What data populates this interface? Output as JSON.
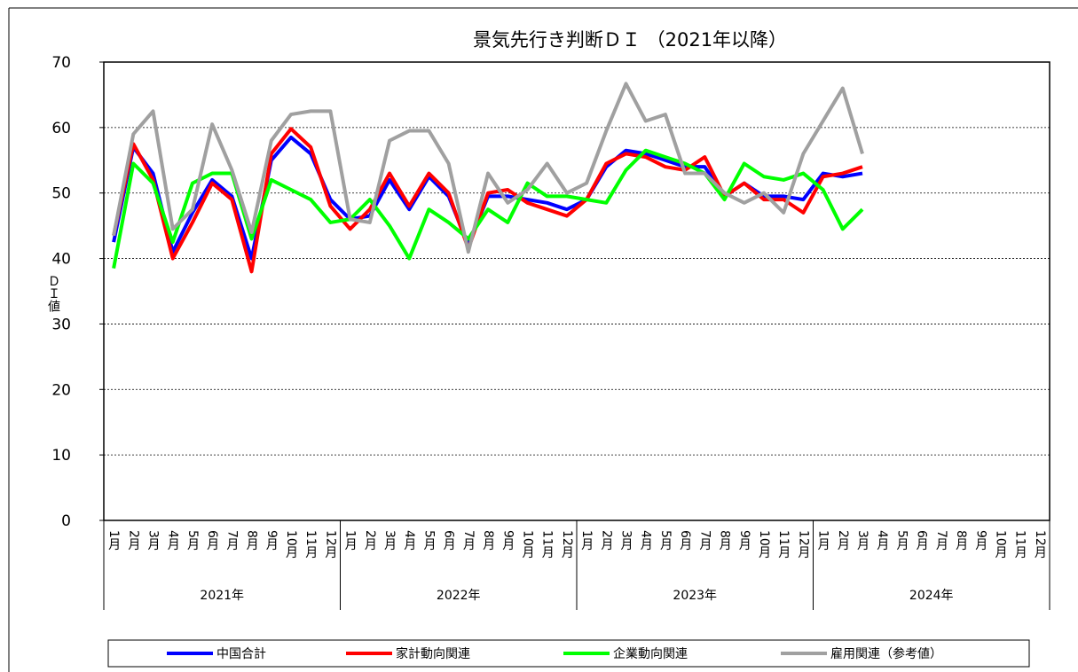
{
  "chart_data": {
    "type": "line",
    "title": "景気先行き判断ＤＩ （2021年以降）",
    "ylabel": "ＤＩ値",
    "categories": [
      "1月",
      "2月",
      "3月",
      "4月",
      "5月",
      "6月",
      "7月",
      "8月",
      "9月",
      "10月",
      "11月",
      "12月",
      "1月",
      "2月",
      "3月",
      "4月",
      "5月",
      "6月",
      "7月",
      "8月",
      "9月",
      "10月",
      "11月",
      "12月",
      "1月",
      "2月",
      "3月",
      "4月",
      "5月",
      "6月",
      "7月",
      "8月",
      "9月",
      "10月",
      "11月",
      "12月",
      "1月",
      "2月",
      "3月",
      "4月",
      "5月",
      "6月",
      "7月",
      "8月",
      "9月",
      "10月",
      "11月",
      "12月"
    ],
    "groups": [
      "2021年",
      "2022年",
      "2023年",
      "2024年"
    ],
    "ylim": [
      0,
      70
    ],
    "yticks": [
      0,
      10,
      20,
      30,
      40,
      50,
      60,
      70
    ],
    "grid": true,
    "series": [
      {
        "name": "中国合計",
        "color": "#0000ff",
        "values": [
          42.5,
          57,
          53,
          41,
          47,
          52,
          49.5,
          40,
          55,
          58.5,
          56,
          49,
          46,
          46.5,
          52,
          47.5,
          52.5,
          49.5,
          42,
          49.5,
          49.5,
          49,
          48.5,
          47.5,
          49,
          54,
          56.5,
          56,
          55,
          54,
          54,
          49.5,
          51.5,
          49.5,
          49.5,
          49,
          53,
          52.5,
          53,
          null,
          null,
          null,
          null,
          null,
          null,
          null,
          null,
          null
        ]
      },
      {
        "name": "家計動向関連",
        "color": "#ff0000",
        "values": [
          43.5,
          57.5,
          52,
          40,
          45.5,
          51.5,
          49,
          38,
          56,
          59.8,
          57,
          48,
          44.5,
          47.5,
          53,
          48,
          53,
          50,
          41.5,
          50,
          50.5,
          48.5,
          47.5,
          46.5,
          49,
          54.5,
          56,
          55.5,
          54,
          53.5,
          55.5,
          49.5,
          51.5,
          49,
          49,
          47,
          52.5,
          53,
          54,
          null,
          null,
          null,
          null,
          null,
          null,
          null,
          null,
          null
        ]
      },
      {
        "name": "企業動向関連",
        "color": "#00ff00",
        "values": [
          38.5,
          54.5,
          51.5,
          42.5,
          51.5,
          53,
          53,
          43,
          52,
          50.5,
          49,
          45.5,
          46,
          49,
          45,
          40,
          47.5,
          45.5,
          43,
          47.5,
          45.5,
          51.5,
          49.5,
          49.5,
          49,
          48.5,
          53.5,
          56.5,
          55.5,
          54.5,
          53,
          49,
          54.5,
          52.5,
          52,
          53,
          50.5,
          44.5,
          47.5,
          null,
          null,
          null,
          null,
          null,
          null,
          null,
          null,
          null
        ]
      },
      {
        "name": "雇用関連（参考値）",
        "color": "#a0a0a0",
        "values": [
          43.5,
          59,
          62.5,
          44.5,
          47.5,
          60.5,
          53.5,
          44,
          58,
          62,
          62.5,
          62.5,
          46,
          45.5,
          58,
          59.5,
          59.5,
          54.5,
          41,
          53,
          48.5,
          50.5,
          54.5,
          50,
          51.5,
          59.5,
          66.7,
          61,
          62,
          53,
          53,
          50,
          48.5,
          50,
          47,
          56,
          61,
          66,
          56,
          null,
          null,
          null,
          null,
          null,
          null,
          null,
          null,
          null
        ]
      }
    ]
  }
}
